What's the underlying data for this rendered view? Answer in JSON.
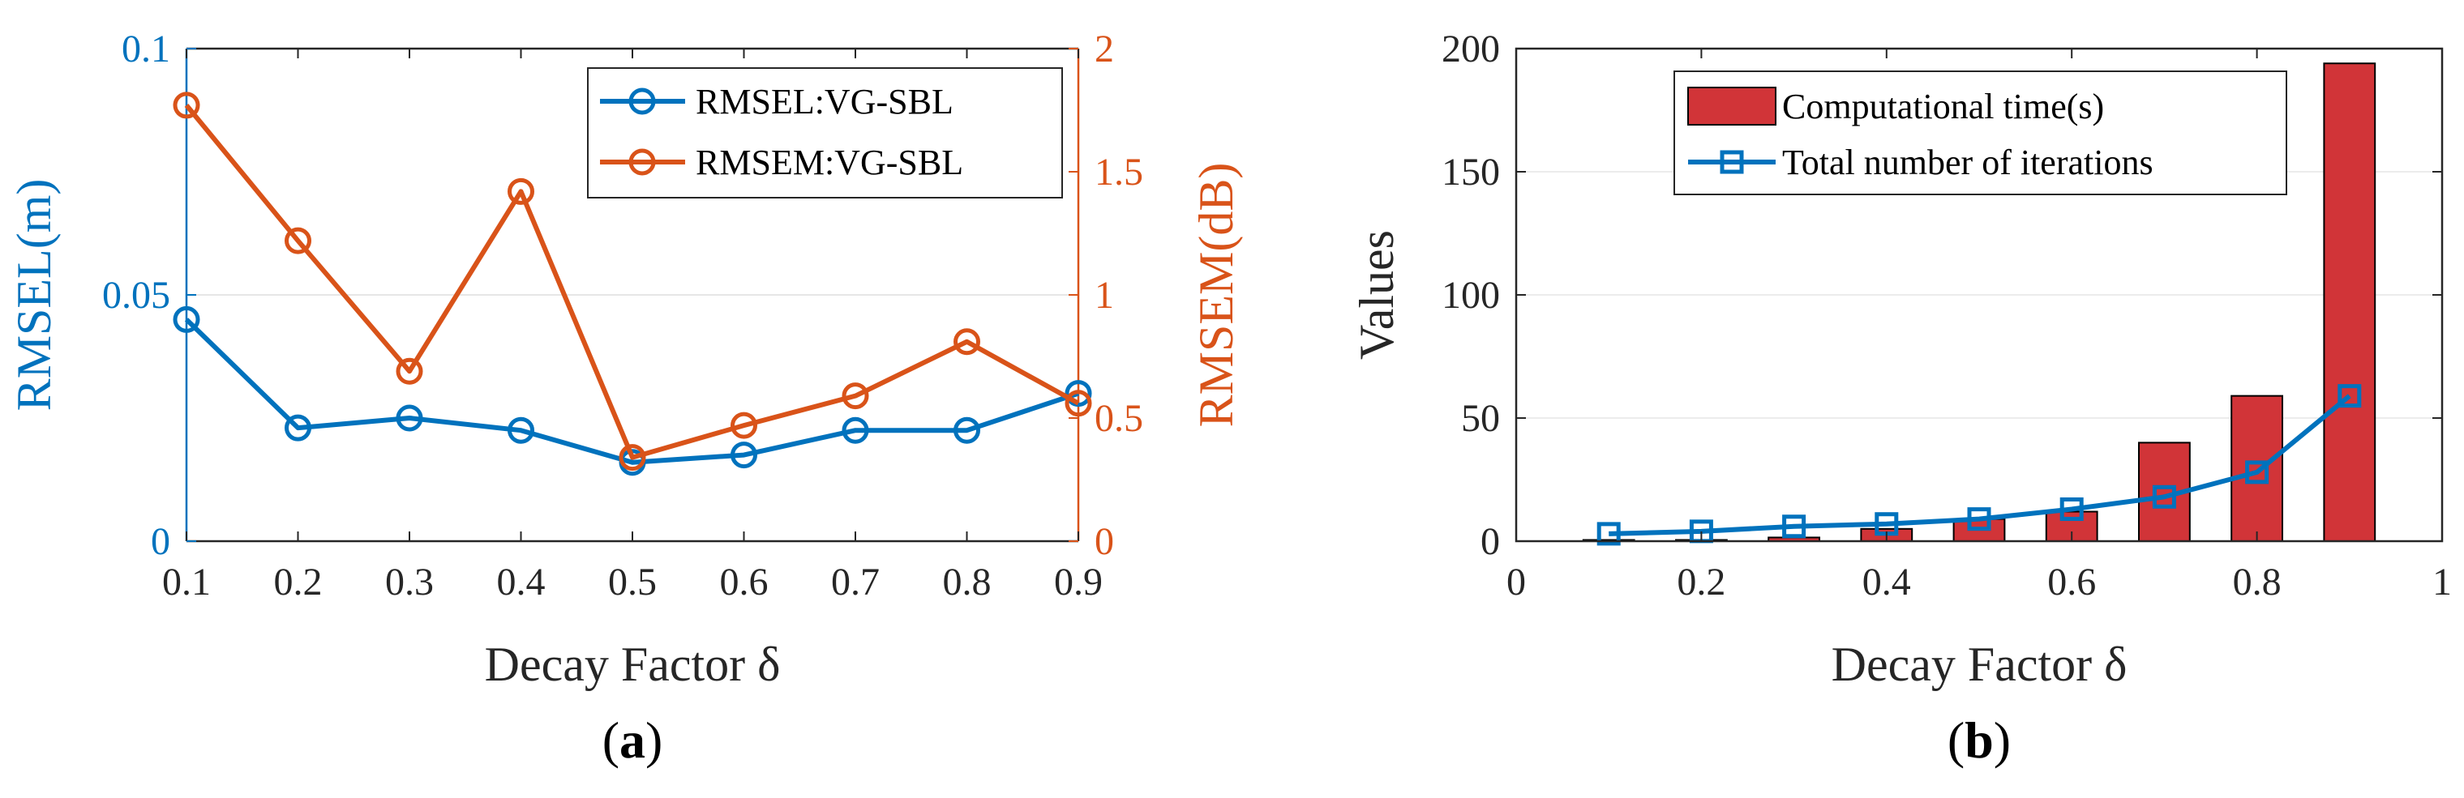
{
  "panels": {
    "a": {
      "label_open": "(",
      "label_letter": "a",
      "label_close": ")"
    },
    "b": {
      "label_open": "(",
      "label_letter": "b",
      "label_close": ")"
    }
  },
  "chart_data": [
    {
      "type": "line",
      "title": "",
      "xlabel": "Decay Factor δ",
      "ylabel": "RMSEL(m)",
      "y2label": "RMSEM(dB)",
      "x": [
        0.1,
        0.2,
        0.3,
        0.4,
        0.5,
        0.6,
        0.7,
        0.8,
        0.9
      ],
      "xlim": [
        0.1,
        0.9
      ],
      "ylim": [
        0,
        0.1
      ],
      "y2lim": [
        0,
        2
      ],
      "xticks": [
        "0.1",
        "0.2",
        "0.3",
        "0.4",
        "0.5",
        "0.6",
        "0.7",
        "0.8",
        "0.9"
      ],
      "yticks": [
        "0",
        "0.05",
        "0.1"
      ],
      "y2ticks": [
        "0",
        "0.5",
        "1",
        "1.5",
        "2"
      ],
      "legend_position": "top-right",
      "series": [
        {
          "name": "RMSEL:VG-SBL",
          "axis": "left",
          "color": "#0072BD",
          "marker": "circle",
          "values": [
            0.045,
            0.023,
            0.025,
            0.0225,
            0.016,
            0.0175,
            0.0225,
            0.0225,
            0.03
          ]
        },
        {
          "name": "RMSEM:VG-SBL",
          "axis": "right",
          "color": "#D95319",
          "marker": "circle",
          "values": [
            1.77,
            1.22,
            0.69,
            1.42,
            0.34,
            0.47,
            0.59,
            0.81,
            0.56
          ]
        }
      ]
    },
    {
      "type": "bar",
      "title": "",
      "xlabel": "Decay Factor δ",
      "ylabel": "Values",
      "x": [
        0.1,
        0.2,
        0.3,
        0.4,
        0.5,
        0.6,
        0.7,
        0.8,
        0.9
      ],
      "xlim": [
        0,
        1
      ],
      "ylim": [
        0,
        200
      ],
      "xticks": [
        "0",
        "0.2",
        "0.4",
        "0.6",
        "0.8",
        "1"
      ],
      "yticks": [
        "0",
        "50",
        "100",
        "150",
        "200"
      ],
      "legend_position": "top-right",
      "series": [
        {
          "name": "Computational time(s)",
          "kind": "bar",
          "color": "#D13438",
          "values": [
            0.5,
            0.5,
            1.5,
            5,
            9,
            12,
            40,
            59,
            194
          ]
        },
        {
          "name": "Total number of iterations",
          "kind": "line",
          "color": "#0072BD",
          "marker": "square",
          "values": [
            3,
            4,
            6,
            7,
            9,
            13,
            18,
            28,
            59
          ]
        }
      ]
    }
  ]
}
